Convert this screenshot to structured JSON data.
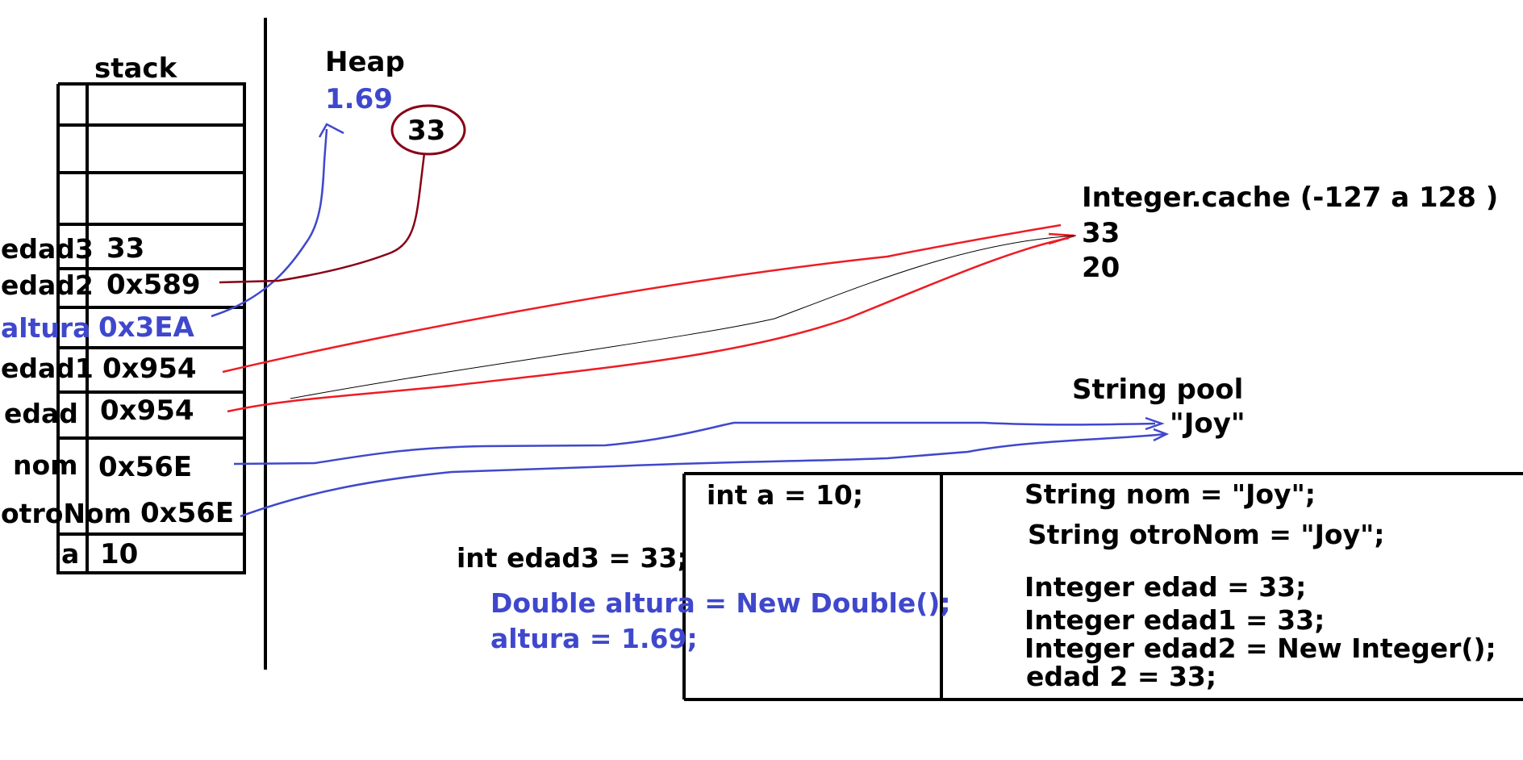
{
  "stack": {
    "title": "stack",
    "rows": [
      {
        "name": "edad3",
        "value": "33",
        "color": "#000000"
      },
      {
        "name": "edad2",
        "value": "0x589",
        "color": "#000000"
      },
      {
        "name": "altura",
        "value": "0x3EA",
        "color": "#3f48cc"
      },
      {
        "name": "edad1",
        "value": "0x954",
        "color": "#000000"
      },
      {
        "name": "edad",
        "value": "0x954",
        "color": "#000000"
      },
      {
        "name": "nom",
        "value": "0x56E",
        "color": "#000000"
      },
      {
        "name": "otroNom",
        "value": "0x56E",
        "color": "#000000"
      },
      {
        "name": "a",
        "value": "10",
        "color": "#000000"
      }
    ]
  },
  "heap": {
    "title": "Heap",
    "double_value": "1.69",
    "integer_value": "33"
  },
  "integer_cache": {
    "title": "Integer.cache (-127 a 128 )",
    "values": [
      "33",
      "20"
    ]
  },
  "string_pool": {
    "title": "String pool",
    "value": "\"Joy\""
  },
  "code": {
    "int_a": "int a = 10;",
    "int_edad3": "int edad3 = 33;",
    "double_altura": "Double altura = New Double();",
    "altura_assign": "altura = 1.69;",
    "string_nom": "String nom = \"Joy\";",
    "string_otronom": "String otroNom = \"Joy\";",
    "integer_edad": "Integer edad = 33;",
    "integer_edad1": "Integer edad1 = 33;",
    "integer_edad2": "Integer edad2 = New Integer();",
    "edad2_assign": "edad 2 = 33;"
  },
  "colors": {
    "black": "#000000",
    "blue": "#3f48cc",
    "red": "#ed1c24",
    "dark_red": "#880015"
  }
}
